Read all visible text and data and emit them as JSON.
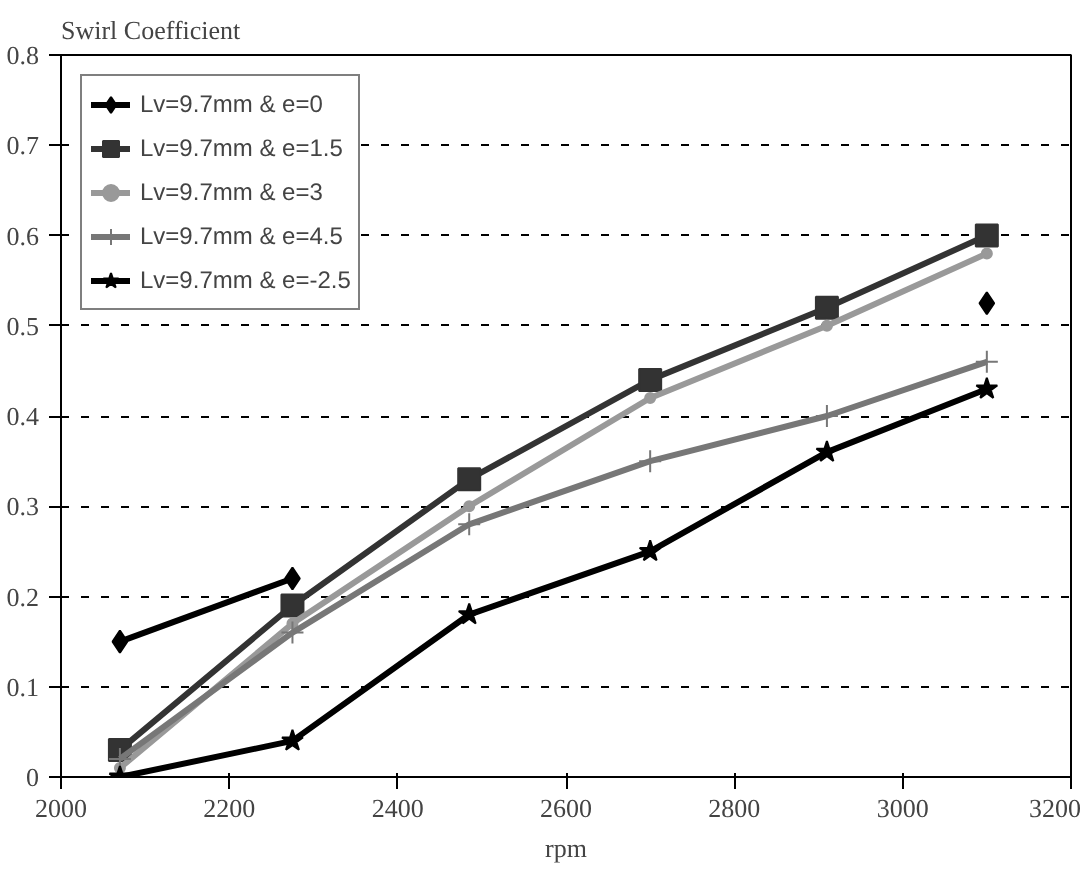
{
  "chart_data": {
    "type": "line",
    "title": "Swirl Coefficient",
    "xlabel": "rpm",
    "x": [
      2070,
      2275,
      2485,
      2700,
      2910,
      3100
    ],
    "series": [
      {
        "name": "Lv=9.7mm & e=0",
        "color": "#000000",
        "marker": "diamond",
        "values": [
          0.15,
          0.22,
          null,
          null,
          null,
          0.525
        ]
      },
      {
        "name": "Lv=9.7mm & e=1.5",
        "color": "#333333",
        "marker": "square",
        "values": [
          0.03,
          0.19,
          0.33,
          0.44,
          0.52,
          0.6
        ]
      },
      {
        "name": "Lv=9.7mm & e=3",
        "color": "#999999",
        "marker": "circle",
        "values": [
          0.01,
          0.17,
          0.3,
          0.42,
          0.5,
          0.58
        ]
      },
      {
        "name": "Lv=9.7mm & e=4.5",
        "color": "#777777",
        "marker": "cross",
        "values": [
          0.02,
          0.16,
          0.28,
          0.35,
          0.4,
          0.46
        ]
      },
      {
        "name": "Lv=9.7mm & e=-2.5",
        "color": "#000000",
        "marker": "star",
        "values": [
          0.0,
          0.04,
          0.18,
          0.25,
          0.36,
          0.43
        ]
      }
    ],
    "xlim": [
      2000,
      3200
    ],
    "xticks": [
      2000,
      2200,
      2400,
      2600,
      2800,
      3000,
      3200
    ],
    "ylim": [
      0,
      0.8
    ],
    "yticks": [
      0,
      0.1,
      0.2,
      0.3,
      0.4,
      0.5,
      0.6,
      0.7,
      0.8
    ],
    "grid": "y",
    "legend": "top left",
    "line_style": "solid"
  }
}
